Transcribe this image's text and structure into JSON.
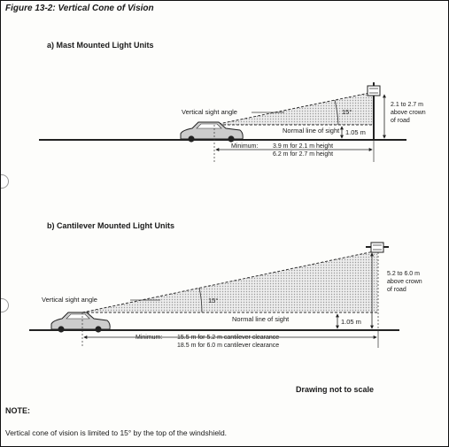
{
  "figure_title": "Figure 13-2:  Vertical Cone of Vision",
  "section_a": {
    "title": "a)  Mast Mounted Light Units",
    "sight_angle_label": "Vertical sight angle",
    "angle_label": "15°",
    "normal_line_label": "Normal line of sight",
    "eye_height_label": "1.05 m",
    "mount_height_label": [
      "2.1 to 2.7 m",
      "above crown",
      "of road"
    ],
    "minimum_label": "Minimum:",
    "minimum_lines": [
      "3.9 m for 2.1 m height",
      "6.2 m for 2.7 m height"
    ]
  },
  "section_b": {
    "title": "b)  Cantilever Mounted Light Units",
    "sight_angle_label": "Vertical sight angle",
    "angle_label": "15°",
    "normal_line_label": "Normal line of sight",
    "eye_height_label": "1.05 m",
    "mount_height_label": [
      "5.2 to 6.0 m",
      "above crown",
      "of road"
    ],
    "minimum_label": "Minimum:",
    "minimum_lines": [
      "15.5 m for 5.2 m cantilever clearance",
      "18.5 m for 6.0 m cantilever clearance"
    ]
  },
  "scale_note": "Drawing not to scale",
  "note_heading": "NOTE:",
  "note_text": "Vertical cone of vision is limited to 15° by the top of the windshield."
}
